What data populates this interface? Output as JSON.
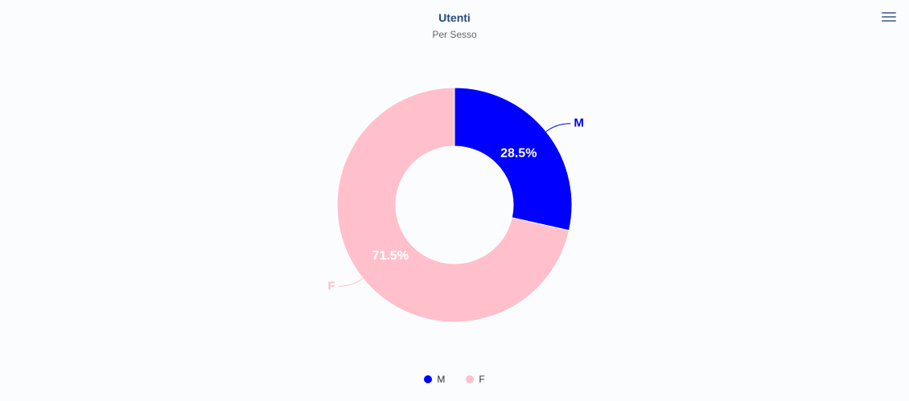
{
  "chart_data": {
    "type": "pie",
    "variant": "donut",
    "title": "Utenti",
    "subtitle": "Per Sesso",
    "series": [
      {
        "name": "M",
        "value": 28.5,
        "label": "28.5%",
        "color": "#0000ff"
      },
      {
        "name": "F",
        "value": 71.5,
        "label": "71.5%",
        "color": "#ffc0cb"
      }
    ],
    "legend": {
      "placement": "bottom-center",
      "items": [
        "M",
        "F"
      ]
    }
  },
  "menu": {
    "icon": "hamburger-menu-icon"
  }
}
